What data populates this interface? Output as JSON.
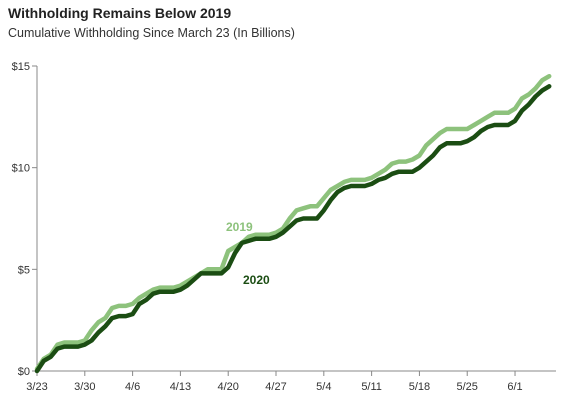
{
  "chart_data": {
    "type": "line",
    "title": "Withholding Remains Below 2019",
    "subtitle": "Cumulative Withholding Since March 23 (In Billions)",
    "xlabel": "",
    "ylabel": "",
    "x_start": "3/23",
    "x_end": "6/7",
    "x_ticks": [
      "3/23",
      "3/30",
      "4/6",
      "4/13",
      "4/20",
      "4/27",
      "5/4",
      "5/11",
      "5/18",
      "5/25",
      "6/1"
    ],
    "y_ticks": [
      0,
      5,
      10,
      15
    ],
    "y_tick_labels": [
      "$0",
      "$5",
      "$10",
      "$15"
    ],
    "ylim": [
      0,
      15
    ],
    "grid": false,
    "series": [
      {
        "name": "2019",
        "color": "#8dc27c",
        "points": [
          [
            "3/23",
            0.1
          ],
          [
            "3/24",
            0.6
          ],
          [
            "3/25",
            0.8
          ],
          [
            "3/26",
            1.3
          ],
          [
            "3/27",
            1.4
          ],
          [
            "3/28",
            1.4
          ],
          [
            "3/29",
            1.4
          ],
          [
            "3/30",
            1.5
          ],
          [
            "3/31",
            2.0
          ],
          [
            "4/1",
            2.4
          ],
          [
            "4/2",
            2.6
          ],
          [
            "4/3",
            3.1
          ],
          [
            "4/4",
            3.2
          ],
          [
            "4/5",
            3.2
          ],
          [
            "4/6",
            3.3
          ],
          [
            "4/7",
            3.6
          ],
          [
            "4/8",
            3.8
          ],
          [
            "4/9",
            4.0
          ],
          [
            "4/10",
            4.1
          ],
          [
            "4/11",
            4.1
          ],
          [
            "4/12",
            4.1
          ],
          [
            "4/13",
            4.2
          ],
          [
            "4/14",
            4.4
          ],
          [
            "4/15",
            4.6
          ],
          [
            "4/16",
            4.8
          ],
          [
            "4/17",
            5.0
          ],
          [
            "4/18",
            5.0
          ],
          [
            "4/19",
            5.0
          ],
          [
            "4/20",
            5.9
          ],
          [
            "4/21",
            6.1
          ],
          [
            "4/22",
            6.3
          ],
          [
            "4/23",
            6.6
          ],
          [
            "4/24",
            6.7
          ],
          [
            "4/25",
            6.7
          ],
          [
            "4/26",
            6.7
          ],
          [
            "4/27",
            6.8
          ],
          [
            "4/28",
            7.0
          ],
          [
            "4/29",
            7.5
          ],
          [
            "4/30",
            7.9
          ],
          [
            "5/1",
            8.0
          ],
          [
            "5/2",
            8.1
          ],
          [
            "5/3",
            8.1
          ],
          [
            "5/4",
            8.5
          ],
          [
            "5/5",
            8.9
          ],
          [
            "5/6",
            9.1
          ],
          [
            "5/7",
            9.3
          ],
          [
            "5/8",
            9.4
          ],
          [
            "5/9",
            9.4
          ],
          [
            "5/10",
            9.4
          ],
          [
            "5/11",
            9.5
          ],
          [
            "5/12",
            9.7
          ],
          [
            "5/13",
            9.9
          ],
          [
            "5/14",
            10.2
          ],
          [
            "5/15",
            10.3
          ],
          [
            "5/16",
            10.3
          ],
          [
            "5/17",
            10.4
          ],
          [
            "5/18",
            10.6
          ],
          [
            "5/19",
            11.1
          ],
          [
            "5/20",
            11.4
          ],
          [
            "5/21",
            11.7
          ],
          [
            "5/22",
            11.9
          ],
          [
            "5/23",
            11.9
          ],
          [
            "5/24",
            11.9
          ],
          [
            "5/25",
            11.9
          ],
          [
            "5/26",
            12.1
          ],
          [
            "5/27",
            12.3
          ],
          [
            "5/28",
            12.5
          ],
          [
            "5/29",
            12.7
          ],
          [
            "5/30",
            12.7
          ],
          [
            "5/31",
            12.7
          ],
          [
            "6/1",
            12.9
          ],
          [
            "6/2",
            13.4
          ],
          [
            "6/3",
            13.6
          ],
          [
            "6/4",
            13.9
          ],
          [
            "6/5",
            14.3
          ],
          [
            "6/6",
            14.5
          ]
        ]
      },
      {
        "name": "2020",
        "color": "#1b4d13",
        "points": [
          [
            "3/23",
            0.0
          ],
          [
            "3/24",
            0.5
          ],
          [
            "3/25",
            0.7
          ],
          [
            "3/26",
            1.1
          ],
          [
            "3/27",
            1.2
          ],
          [
            "3/28",
            1.2
          ],
          [
            "3/29",
            1.2
          ],
          [
            "3/30",
            1.3
          ],
          [
            "3/31",
            1.5
          ],
          [
            "4/1",
            1.9
          ],
          [
            "4/2",
            2.2
          ],
          [
            "4/3",
            2.6
          ],
          [
            "4/4",
            2.7
          ],
          [
            "4/5",
            2.7
          ],
          [
            "4/6",
            2.8
          ],
          [
            "4/7",
            3.3
          ],
          [
            "4/8",
            3.5
          ],
          [
            "4/9",
            3.8
          ],
          [
            "4/10",
            3.9
          ],
          [
            "4/11",
            3.9
          ],
          [
            "4/12",
            3.9
          ],
          [
            "4/13",
            4.0
          ],
          [
            "4/14",
            4.2
          ],
          [
            "4/15",
            4.5
          ],
          [
            "4/16",
            4.8
          ],
          [
            "4/17",
            4.8
          ],
          [
            "4/18",
            4.8
          ],
          [
            "4/19",
            4.8
          ],
          [
            "4/20",
            5.1
          ],
          [
            "4/21",
            5.8
          ],
          [
            "4/22",
            6.3
          ],
          [
            "4/23",
            6.4
          ],
          [
            "4/24",
            6.5
          ],
          [
            "4/25",
            6.5
          ],
          [
            "4/26",
            6.5
          ],
          [
            "4/27",
            6.6
          ],
          [
            "4/28",
            6.8
          ],
          [
            "4/29",
            7.1
          ],
          [
            "4/30",
            7.4
          ],
          [
            "5/1",
            7.5
          ],
          [
            "5/2",
            7.5
          ],
          [
            "5/3",
            7.5
          ],
          [
            "5/4",
            7.9
          ],
          [
            "5/5",
            8.4
          ],
          [
            "5/6",
            8.8
          ],
          [
            "5/7",
            9.0
          ],
          [
            "5/8",
            9.1
          ],
          [
            "5/9",
            9.1
          ],
          [
            "5/10",
            9.1
          ],
          [
            "5/11",
            9.2
          ],
          [
            "5/12",
            9.4
          ],
          [
            "5/13",
            9.5
          ],
          [
            "5/14",
            9.7
          ],
          [
            "5/15",
            9.8
          ],
          [
            "5/16",
            9.8
          ],
          [
            "5/17",
            9.8
          ],
          [
            "5/18",
            10.0
          ],
          [
            "5/19",
            10.3
          ],
          [
            "5/20",
            10.6
          ],
          [
            "5/21",
            11.0
          ],
          [
            "5/22",
            11.2
          ],
          [
            "5/23",
            11.2
          ],
          [
            "5/24",
            11.2
          ],
          [
            "5/25",
            11.3
          ],
          [
            "5/26",
            11.5
          ],
          [
            "5/27",
            11.8
          ],
          [
            "5/28",
            12.0
          ],
          [
            "5/29",
            12.1
          ],
          [
            "5/30",
            12.1
          ],
          [
            "5/31",
            12.1
          ],
          [
            "6/1",
            12.3
          ],
          [
            "6/2",
            12.8
          ],
          [
            "6/3",
            13.1
          ],
          [
            "6/4",
            13.5
          ],
          [
            "6/5",
            13.8
          ],
          [
            "6/6",
            14.0
          ]
        ]
      }
    ]
  }
}
